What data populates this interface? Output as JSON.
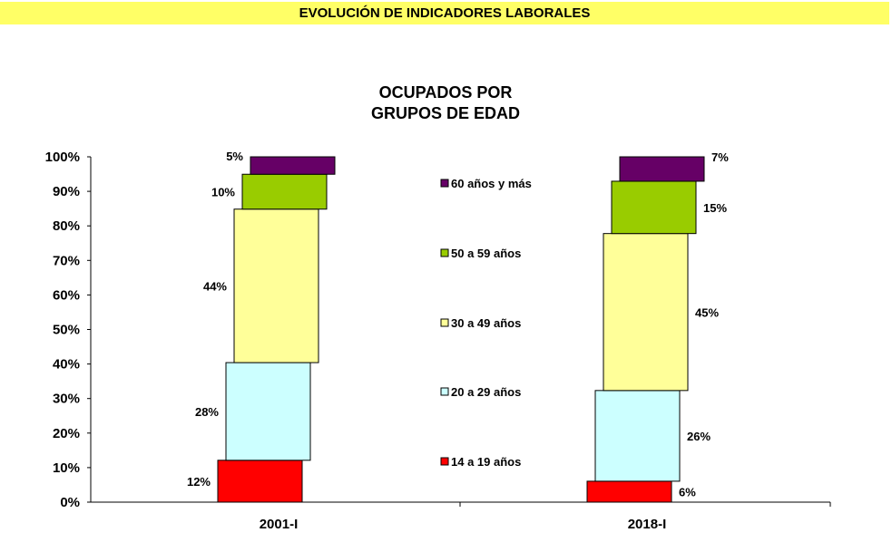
{
  "header": {
    "title": "EVOLUCIÓN DE INDICADORES LABORALES"
  },
  "chart_data": {
    "type": "bar",
    "stacked": true,
    "title": "OCUPADOS POR\nGRUPOS DE EDAD",
    "title_lines": [
      "OCUPADOS POR",
      "GRUPOS DE EDAD"
    ],
    "categories": [
      "2001-I",
      "2018-I"
    ],
    "ylim": [
      0,
      100
    ],
    "yticks": [
      "0%",
      "10%",
      "20%",
      "30%",
      "40%",
      "50%",
      "60%",
      "70%",
      "80%",
      "90%",
      "100%"
    ],
    "legend_position": "center",
    "series": [
      {
        "name": "14 a 19 años",
        "color": "#ff0000",
        "values": [
          12,
          6
        ],
        "labels": [
          "12%",
          "6%"
        ]
      },
      {
        "name": "20 a 29 años",
        "color": "#ccffff",
        "values": [
          28,
          26
        ],
        "labels": [
          "28%",
          "26%"
        ]
      },
      {
        "name": "30 a 49 años",
        "color": "#ffff99",
        "values": [
          44,
          45
        ],
        "labels": [
          "44%",
          "45%"
        ]
      },
      {
        "name": "50 a 59 años",
        "color": "#99cc00",
        "values": [
          10,
          15
        ],
        "labels": [
          "10%",
          "15%"
        ]
      },
      {
        "name": "60 años y más",
        "color": "#660066",
        "values": [
          5,
          7
        ],
        "labels": [
          "5%",
          "7%"
        ]
      }
    ]
  }
}
